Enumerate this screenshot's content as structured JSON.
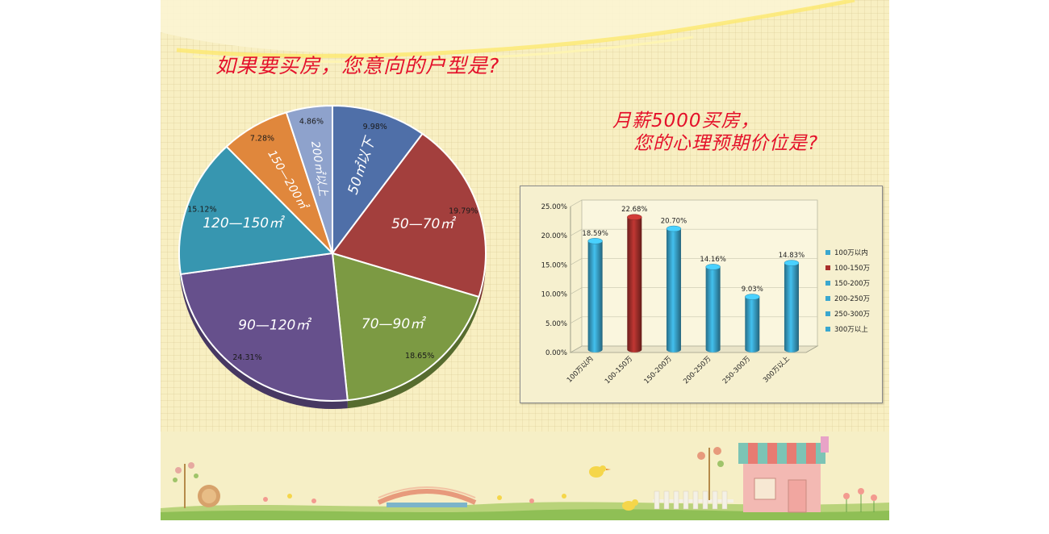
{
  "titles": {
    "pie_question": "如果要买房，您意向的户型是?",
    "bar_question_line1": "月薪5000买房，",
    "bar_question_line2": "您的心理预期价位是?"
  },
  "chart_data": [
    {
      "type": "pie",
      "title": "如果要买房，您意向的户型是?",
      "slices": [
        {
          "label": "50㎡以下",
          "value": 9.98,
          "value_label": "9.98%",
          "color": "#4f6fa8"
        },
        {
          "label": "50—70㎡",
          "value": 19.79,
          "value_label": "19.79%",
          "color": "#a33f3d"
        },
        {
          "label": "70—90㎡",
          "value": 18.65,
          "value_label": "18.65%",
          "color": "#7c9a43"
        },
        {
          "label": "90—120㎡",
          "value": 24.31,
          "value_label": "24.31%",
          "color": "#66508c"
        },
        {
          "label": "120—150㎡",
          "value": 15.12,
          "value_label": "15.12%",
          "color": "#3796b0"
        },
        {
          "label": "150—200㎡",
          "value": 7.28,
          "value_label": "7.28%",
          "color": "#e0873c"
        },
        {
          "label": "200㎡以上",
          "value": 4.86,
          "value_label": "4.86%",
          "color": "#8ea2cc"
        }
      ]
    },
    {
      "type": "bar",
      "title": "月薪5000买房，您的心理预期价位是?",
      "categories": [
        "100万以内",
        "100-150万",
        "150-200万",
        "200-250万",
        "250-300万",
        "300万以上"
      ],
      "values": [
        18.59,
        22.68,
        20.7,
        14.16,
        9.03,
        14.83
      ],
      "value_labels": [
        "18.59%",
        "22.68%",
        "20.70%",
        "14.16%",
        "9.03%",
        "14.83%"
      ],
      "colors": [
        "#3aa7cf",
        "#a8302c",
        "#3aa7cf",
        "#3aa7cf",
        "#3aa7cf",
        "#3aa7cf"
      ],
      "yticks": [
        "0.00%",
        "5.00%",
        "10.00%",
        "15.00%",
        "20.00%",
        "25.00%"
      ],
      "ylim": [
        0,
        25
      ],
      "legend": [
        "100万以内",
        "100-150万",
        "150-200万",
        "200-250万",
        "250-300万",
        "300万以上"
      ],
      "legend_position": "right"
    }
  ]
}
